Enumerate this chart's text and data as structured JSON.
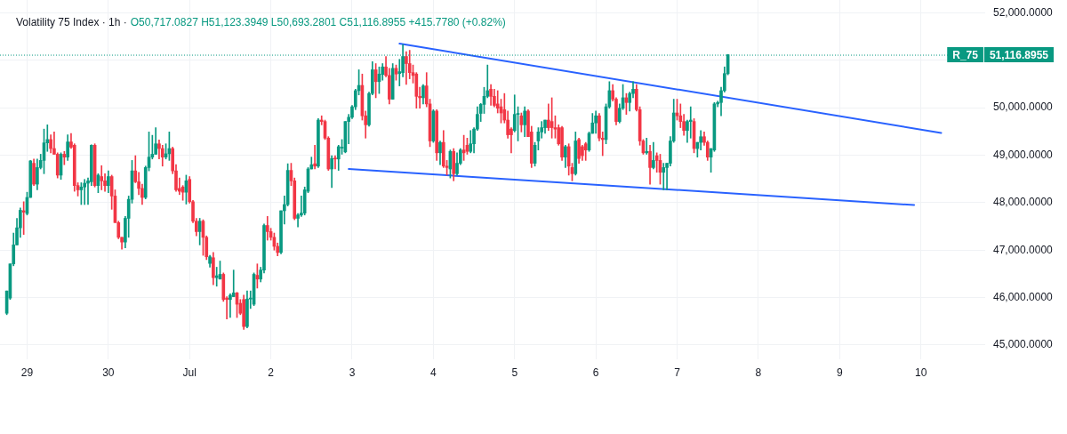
{
  "chart_data": {
    "type": "candlestick",
    "title": "Volatility 75 Index · 1h ·",
    "subtitle": "O50,717.0827 H51,123.3949 L50,693.2801 C51,116.8955 +415.7780 (+0.82%)",
    "x": [
      "--06-28T18:00",
      "--06-28T19:00",
      "--06-28T20:00",
      "--06-28T21:00",
      "--06-28T22:00",
      "--06-28T23:00",
      "--06-29T00:00",
      "--06-29T01:00",
      "--06-29T02:00",
      "--06-29T03:00",
      "--06-29T04:00",
      "--06-29T05:00",
      "--06-29T06:00",
      "--06-29T07:00",
      "--06-29T08:00",
      "--06-29T09:00",
      "--06-29T10:00",
      "--06-29T11:00",
      "--06-29T12:00",
      "--06-29T13:00",
      "--06-29T14:00",
      "--06-29T15:00",
      "--06-29T16:00",
      "--06-29T17:00",
      "--06-29T18:00",
      "--06-29T19:00",
      "--06-29T20:00",
      "--06-29T21:00",
      "--06-29T22:00",
      "--06-29T23:00",
      "--06-30T00:00",
      "--06-30T01:00",
      "--06-30T02:00",
      "--06-30T03:00",
      "--06-30T04:00",
      "--06-30T05:00",
      "--06-30T06:00",
      "--06-30T07:00",
      "--06-30T08:00",
      "--06-30T09:00",
      "--06-30T10:00",
      "--06-30T11:00",
      "--06-30T12:00",
      "--06-30T13:00",
      "--06-30T14:00",
      "--06-30T15:00",
      "--06-30T16:00",
      "--06-30T17:00",
      "--06-30T18:00",
      "--06-30T19:00",
      "--06-30T20:00",
      "--06-30T21:00",
      "--06-30T22:00",
      "--06-30T23:00",
      "--07-01T00:00",
      "--07-01T01:00",
      "--07-01T02:00",
      "--07-01T03:00",
      "--07-01T04:00",
      "--07-01T05:00",
      "--07-01T06:00",
      "--07-01T07:00",
      "--07-01T08:00",
      "--07-01T09:00",
      "--07-01T10:00",
      "--07-01T11:00",
      "--07-01T12:00",
      "--07-01T13:00",
      "--07-01T14:00",
      "--07-01T15:00",
      "--07-01T16:00",
      "--07-01T17:00",
      "--07-01T18:00",
      "--07-01T19:00",
      "--07-01T20:00",
      "--07-01T21:00",
      "--07-01T22:00",
      "--07-01T23:00",
      "--07-02T00:00",
      "--07-02T01:00",
      "--07-02T02:00",
      "--07-02T03:00",
      "--07-02T04:00",
      "--07-02T05:00",
      "--07-02T06:00",
      "--07-02T07:00",
      "--07-02T08:00",
      "--07-02T09:00",
      "--07-02T10:00",
      "--07-02T11:00",
      "--07-02T12:00",
      "--07-02T13:00",
      "--07-02T14:00",
      "--07-02T15:00",
      "--07-02T16:00",
      "--07-02T17:00",
      "--07-02T18:00",
      "--07-02T19:00",
      "--07-02T20:00",
      "--07-02T21:00",
      "--07-02T22:00",
      "--07-02T23:00",
      "--07-03T00:00",
      "--07-03T01:00",
      "--07-03T02:00",
      "--07-03T03:00",
      "--07-03T04:00",
      "--07-03T05:00",
      "--07-03T06:00",
      "--07-03T07:00",
      "--07-03T08:00",
      "--07-03T09:00",
      "--07-03T10:00",
      "--07-03T11:00",
      "--07-03T12:00",
      "--07-03T13:00",
      "--07-03T14:00",
      "--07-03T15:00",
      "--07-03T16:00",
      "--07-03T17:00",
      "--07-03T18:00",
      "--07-03T19:00",
      "--07-03T20:00",
      "--07-03T21:00",
      "--07-03T22:00",
      "--07-03T23:00",
      "--07-04T00:00",
      "--07-04T01:00",
      "--07-04T02:00",
      "--07-04T03:00",
      "--07-04T04:00",
      "--07-04T05:00",
      "--07-04T06:00",
      "--07-04T07:00",
      "--07-04T08:00",
      "--07-04T09:00",
      "--07-04T10:00",
      "--07-04T11:00",
      "--07-04T12:00",
      "--07-04T13:00",
      "--07-04T14:00",
      "--07-04T15:00",
      "--07-04T16:00",
      "--07-04T17:00",
      "--07-04T18:00",
      "--07-04T19:00",
      "--07-04T20:00",
      "--07-04T21:00",
      "--07-04T22:00",
      "--07-04T23:00",
      "--07-05T00:00",
      "--07-05T01:00",
      "--07-05T02:00",
      "--07-05T03:00",
      "--07-05T04:00",
      "--07-05T05:00",
      "--07-05T06:00",
      "--07-05T07:00",
      "--07-05T08:00",
      "--07-05T09:00",
      "--07-05T10:00",
      "--07-05T11:00",
      "--07-05T12:00",
      "--07-05T13:00",
      "--07-05T14:00",
      "--07-05T15:00",
      "--07-05T16:00",
      "--07-05T17:00",
      "--07-05T18:00",
      "--07-05T19:00",
      "--07-05T20:00",
      "--07-05T21:00",
      "--07-05T22:00",
      "--07-05T23:00",
      "--07-06T00:00",
      "--07-06T01:00",
      "--07-06T02:00",
      "--07-06T03:00",
      "--07-06T04:00",
      "--07-06T05:00",
      "--07-06T06:00",
      "--07-06T07:00",
      "--07-06T08:00",
      "--07-06T09:00",
      "--07-06T10:00",
      "--07-06T11:00",
      "--07-06T12:00",
      "--07-06T13:00",
      "--07-06T14:00",
      "--07-06T15:00",
      "--07-06T16:00",
      "--07-06T17:00",
      "--07-06T18:00",
      "--07-06T19:00",
      "--07-06T20:00",
      "--07-06T21:00",
      "--07-06T22:00",
      "--07-06T23:00",
      "--07-07T00:00",
      "--07-07T01:00",
      "--07-07T02:00",
      "--07-07T03:00",
      "--07-07T04:00",
      "--07-07T05:00",
      "--07-07T06:00",
      "--07-07T07:00",
      "--07-07T08:00",
      "--07-07T09:00",
      "--07-07T10:00",
      "--07-07T11:00",
      "--07-07T12:00",
      "--07-07T13:00",
      "--07-07T14:00",
      "--07-07T15:00"
    ],
    "ohlc": [
      [
        45670,
        46140,
        45640,
        46140
      ],
      [
        45990,
        46710,
        45960,
        46710
      ],
      [
        46710,
        47360,
        46670,
        47110
      ],
      [
        47110,
        47670,
        47110,
        47470
      ],
      [
        47470,
        47890,
        47270,
        47840
      ],
      [
        47830,
        48020,
        47330,
        47800
      ],
      [
        47770,
        48220,
        47740,
        48110
      ],
      [
        48110,
        48890,
        48110,
        48880
      ],
      [
        48830,
        48920,
        48360,
        48390
      ],
      [
        48390,
        48920,
        48270,
        48740
      ],
      [
        48740,
        49020,
        48710,
        48890
      ],
      [
        48890,
        49550,
        48610,
        49260
      ],
      [
        49260,
        49640,
        49080,
        49330
      ],
      [
        49330,
        49430,
        49050,
        49140
      ],
      [
        49140,
        49490,
        49020,
        49020
      ],
      [
        49020,
        49050,
        48520,
        48580
      ],
      [
        48580,
        49050,
        48490,
        49020
      ],
      [
        49020,
        49080,
        48800,
        48960
      ],
      [
        48960,
        49430,
        48890,
        49280
      ],
      [
        49280,
        49460,
        49140,
        49170
      ],
      [
        49210,
        49240,
        48240,
        48360
      ],
      [
        48360,
        48420,
        48140,
        48270
      ],
      [
        48270,
        48420,
        47960,
        48330
      ],
      [
        48330,
        48490,
        47960,
        48410
      ],
      [
        48410,
        48520,
        47960,
        48460
      ],
      [
        48440,
        49220,
        48360,
        49210
      ],
      [
        49210,
        49240,
        48330,
        48360
      ],
      [
        48360,
        48610,
        48210,
        48580
      ],
      [
        48550,
        48780,
        48270,
        48460
      ],
      [
        48460,
        48610,
        48240,
        48360
      ],
      [
        48360,
        48670,
        48210,
        48550
      ],
      [
        48550,
        48580,
        47860,
        48140
      ],
      [
        48140,
        48270,
        47580,
        47580
      ],
      [
        47580,
        47610,
        47240,
        47270
      ],
      [
        47270,
        47270,
        47020,
        47170
      ],
      [
        47170,
        47710,
        47050,
        47670
      ],
      [
        47670,
        48140,
        47270,
        48070
      ],
      [
        48070,
        48890,
        47990,
        48670
      ],
      [
        48670,
        48990,
        48420,
        48440
      ],
      [
        48440,
        48640,
        48170,
        48300
      ],
      [
        48300,
        48390,
        47960,
        48110
      ],
      [
        48110,
        48770,
        48080,
        48740
      ],
      [
        48740,
        49490,
        48670,
        48960
      ],
      [
        48960,
        49420,
        48920,
        49020
      ],
      [
        49020,
        49580,
        49020,
        49240
      ],
      [
        49240,
        49320,
        48920,
        49140
      ],
      [
        49140,
        49210,
        48770,
        48960
      ],
      [
        48960,
        49240,
        48920,
        49030
      ],
      [
        49030,
        49490,
        48890,
        49140
      ],
      [
        49140,
        49170,
        48610,
        48670
      ],
      [
        48670,
        48800,
        48240,
        48270
      ],
      [
        48300,
        48520,
        48170,
        48240
      ],
      [
        48330,
        48360,
        48050,
        48220
      ],
      [
        48220,
        48580,
        47970,
        48460
      ],
      [
        48490,
        48550,
        47990,
        48020
      ],
      [
        48020,
        48050,
        47580,
        47610
      ],
      [
        47610,
        47670,
        47300,
        47390
      ],
      [
        47390,
        47670,
        47110,
        47610
      ],
      [
        47610,
        47640,
        46890,
        47270
      ],
      [
        47270,
        47300,
        46800,
        46860
      ],
      [
        46720,
        46890,
        46640,
        46860
      ],
      [
        46840,
        46950,
        46270,
        46420
      ],
      [
        46420,
        46640,
        46240,
        46460
      ],
      [
        46390,
        46770,
        46390,
        46490
      ],
      [
        46490,
        46520,
        45920,
        45960
      ],
      [
        45990,
        46020,
        45550,
        45960
      ],
      [
        45960,
        46080,
        45580,
        46050
      ],
      [
        46020,
        46580,
        46020,
        46100
      ],
      [
        46100,
        46110,
        45580,
        45860
      ],
      [
        45880,
        45960,
        45640,
        45670
      ],
      [
        45960,
        46050,
        45330,
        45390
      ],
      [
        45390,
        46140,
        45360,
        45970
      ],
      [
        45970,
        46140,
        45770,
        45990
      ],
      [
        45860,
        46520,
        45830,
        46490
      ],
      [
        46470,
        46710,
        46200,
        46390
      ],
      [
        46390,
        46640,
        46330,
        46580
      ],
      [
        46580,
        47550,
        46520,
        47520
      ],
      [
        47520,
        47710,
        47210,
        47390
      ],
      [
        47390,
        47460,
        47210,
        47270
      ],
      [
        47270,
        47360,
        47000,
        47080
      ],
      [
        47080,
        47150,
        46880,
        46950
      ],
      [
        46950,
        47830,
        46920,
        47830
      ],
      [
        47830,
        48140,
        47550,
        47960
      ],
      [
        47960,
        48820,
        47930,
        48680
      ],
      [
        48680,
        48830,
        48360,
        48460
      ],
      [
        48460,
        48520,
        47640,
        47670
      ],
      [
        47670,
        47770,
        47490,
        47740
      ],
      [
        47740,
        48140,
        47710,
        47780
      ],
      [
        47780,
        48330,
        47740,
        48270
      ],
      [
        48240,
        48740,
        48210,
        48710
      ],
      [
        48710,
        48960,
        48710,
        48800
      ],
      [
        48820,
        49210,
        48710,
        48770
      ],
      [
        48770,
        49770,
        48740,
        49740
      ],
      [
        49740,
        49830,
        49640,
        49710
      ],
      [
        49710,
        49740,
        49330,
        49360
      ],
      [
        49360,
        49390,
        48680,
        48710
      ],
      [
        48710,
        48990,
        48320,
        48930
      ],
      [
        48940,
        48990,
        48710,
        48920
      ],
      [
        48920,
        49210,
        48680,
        49180
      ],
      [
        49150,
        49330,
        49020,
        49170
      ],
      [
        49070,
        49710,
        49050,
        49710
      ],
      [
        49710,
        49860,
        49240,
        49800
      ],
      [
        49800,
        50050,
        49770,
        50020
      ],
      [
        50020,
        50390,
        49960,
        50360
      ],
      [
        50360,
        50800,
        50270,
        50470
      ],
      [
        50470,
        50710,
        49740,
        49830
      ],
      [
        49830,
        49930,
        49360,
        49640
      ],
      [
        49640,
        50330,
        49610,
        50300
      ],
      [
        50300,
        50970,
        50270,
        50800
      ],
      [
        50800,
        50930,
        50210,
        50550
      ],
      [
        50550,
        50860,
        50300,
        50710
      ],
      [
        50700,
        50930,
        50580,
        50860
      ],
      [
        50860,
        51080,
        50650,
        50680
      ],
      [
        50680,
        50830,
        50080,
        50180
      ],
      [
        50180,
        50930,
        50180,
        50830
      ],
      [
        50830,
        50900,
        50580,
        50710
      ],
      [
        50720,
        51020,
        50460,
        50760
      ],
      [
        50740,
        51330,
        50650,
        51080
      ],
      [
        51080,
        51180,
        50490,
        50930
      ],
      [
        50930,
        51210,
        50610,
        50740
      ],
      [
        50740,
        50900,
        50520,
        50680
      ],
      [
        50710,
        50740,
        49990,
        50240
      ],
      [
        50240,
        50430,
        49990,
        50210
      ],
      [
        50210,
        50490,
        50080,
        50460
      ],
      [
        50460,
        50740,
        50020,
        50080
      ],
      [
        50080,
        50180,
        49180,
        49300
      ],
      [
        49300,
        49960,
        49270,
        49930
      ],
      [
        49930,
        49960,
        48890,
        49050
      ],
      [
        49050,
        49300,
        48800,
        49270
      ],
      [
        49270,
        49520,
        48740,
        48770
      ],
      [
        48770,
        48890,
        48580,
        48740
      ],
      [
        48710,
        49110,
        48520,
        49080
      ],
      [
        49080,
        49140,
        48460,
        48610
      ],
      [
        48610,
        49050,
        48580,
        48830
      ],
      [
        48830,
        49140,
        48800,
        49110
      ],
      [
        49110,
        49420,
        48890,
        49050
      ],
      [
        49210,
        49360,
        49020,
        49080
      ],
      [
        49080,
        49520,
        49050,
        49240
      ],
      [
        49240,
        49580,
        49050,
        49550
      ],
      [
        49550,
        50020,
        49520,
        49860
      ],
      [
        49880,
        50090,
        49710,
        50070
      ],
      [
        50070,
        50430,
        49880,
        50240
      ],
      [
        50240,
        50900,
        50210,
        50360
      ],
      [
        50390,
        50490,
        50050,
        50240
      ],
      [
        50240,
        50390,
        50020,
        50050
      ],
      [
        50080,
        50360,
        49890,
        49990
      ],
      [
        50020,
        50180,
        49680,
        49890
      ],
      [
        49960,
        50300,
        49680,
        49740
      ],
      [
        49740,
        49930,
        49360,
        49430
      ],
      [
        49550,
        49580,
        49050,
        49430
      ],
      [
        49520,
        50270,
        49490,
        49860
      ],
      [
        49860,
        50020,
        49300,
        49880
      ],
      [
        49830,
        49890,
        49490,
        49640
      ],
      [
        49640,
        50020,
        49390,
        49930
      ],
      [
        49930,
        49960,
        49390,
        49390
      ],
      [
        49490,
        49610,
        48740,
        48830
      ],
      [
        48830,
        49270,
        48770,
        49210
      ],
      [
        49300,
        49580,
        49110,
        49490
      ],
      [
        49490,
        49710,
        49360,
        49580
      ],
      [
        49580,
        49740,
        49460,
        49740
      ],
      [
        49740,
        50080,
        49520,
        49580
      ],
      [
        49710,
        50210,
        49360,
        49580
      ],
      [
        49580,
        49830,
        49360,
        49550
      ],
      [
        49580,
        49640,
        49210,
        49240
      ],
      [
        49580,
        49610,
        48890,
        48960
      ],
      [
        48960,
        49210,
        48740,
        49180
      ],
      [
        49180,
        49240,
        48580,
        48770
      ],
      [
        48740,
        48830,
        48460,
        48610
      ],
      [
        48610,
        49490,
        48580,
        49300
      ],
      [
        49330,
        49360,
        48830,
        48930
      ],
      [
        49180,
        49210,
        48890,
        48990
      ],
      [
        49240,
        49270,
        48890,
        49110
      ],
      [
        49110,
        49490,
        49080,
        49460
      ],
      [
        49460,
        49880,
        49460,
        49680
      ],
      [
        49680,
        49930,
        49460,
        49830
      ],
      [
        49830,
        49880,
        49300,
        49360
      ],
      [
        49360,
        49490,
        48990,
        49330
      ],
      [
        49330,
        50080,
        49240,
        50020
      ],
      [
        50020,
        50550,
        49990,
        50360
      ],
      [
        50360,
        50490,
        50140,
        50180
      ],
      [
        50180,
        50210,
        49640,
        49710
      ],
      [
        49710,
        50080,
        49680,
        49990
      ],
      [
        49990,
        50490,
        49960,
        50210
      ],
      [
        50210,
        50300,
        49860,
        50110
      ],
      [
        50110,
        50330,
        49930,
        50300
      ],
      [
        50300,
        50550,
        50210,
        50390
      ],
      [
        50390,
        50490,
        49930,
        49960
      ],
      [
        49960,
        50020,
        49210,
        49300
      ],
      [
        49300,
        49330,
        49020,
        49050
      ],
      [
        49050,
        49360,
        49020,
        49080
      ],
      [
        49080,
        49210,
        48390,
        48740
      ],
      [
        48740,
        49270,
        48710,
        48890
      ],
      [
        48990,
        49050,
        48640,
        48890
      ],
      [
        48890,
        49020,
        48390,
        48640
      ],
      [
        48640,
        48830,
        48270,
        48740
      ],
      [
        48740,
        48830,
        48270,
        48830
      ],
      [
        48830,
        49390,
        48770,
        49300
      ],
      [
        49300,
        50180,
        49270,
        49890
      ],
      [
        49890,
        50180,
        49740,
        49830
      ],
      [
        49830,
        50080,
        49580,
        49710
      ],
      [
        49710,
        49860,
        49420,
        49520
      ],
      [
        49520,
        49740,
        49270,
        49710
      ],
      [
        49710,
        50020,
        49360,
        49740
      ],
      [
        49710,
        49770,
        49050,
        49140
      ],
      [
        49140,
        49270,
        48960,
        49270
      ],
      [
        49270,
        49520,
        49110,
        49390
      ],
      [
        49390,
        49490,
        49210,
        49270
      ],
      [
        49270,
        49300,
        48890,
        48960
      ],
      [
        48960,
        49140,
        48640,
        49140
      ],
      [
        49110,
        50110,
        49080,
        50080
      ],
      [
        50080,
        50140,
        50020,
        50110
      ],
      [
        50110,
        50430,
        49830,
        50360
      ],
      [
        50360,
        50860,
        50330,
        50720
      ],
      [
        50717.0827,
        51123.3949,
        50693.2801,
        51116.8955
      ]
    ],
    "colors": [
      "#089981",
      "#089981",
      "#089981",
      "#089981",
      "#089981",
      "#f23645",
      "#089981",
      "#089981",
      "#f23645",
      "#089981",
      "#089981",
      "#089981",
      "#089981",
      "#f23645",
      "#f23645",
      "#f23645",
      "#089981",
      "#f23645",
      "#089981",
      "#f23645",
      "#f23645",
      "#f23645",
      "#089981",
      "#089981",
      "#089981",
      "#089981",
      "#f23645",
      "#089981",
      "#f23645",
      "#f23645",
      "#089981",
      "#f23645",
      "#f23645",
      "#f23645",
      "#f23645",
      "#089981",
      "#089981",
      "#089981",
      "#f23645",
      "#f23645",
      "#f23645",
      "#089981",
      "#089981",
      "#089981",
      "#089981",
      "#f23645",
      "#f23645",
      "#089981",
      "#089981",
      "#f23645",
      "#f23645",
      "#f23645",
      "#f23645",
      "#089981",
      "#f23645",
      "#f23645",
      "#f23645",
      "#089981",
      "#f23645",
      "#f23645",
      "#089981",
      "#f23645",
      "#089981",
      "#089981",
      "#f23645",
      "#f23645",
      "#089981",
      "#089981",
      "#f23645",
      "#f23645",
      "#f23645",
      "#089981",
      "#089981",
      "#089981",
      "#f23645",
      "#089981",
      "#089981",
      "#f23645",
      "#f23645",
      "#f23645",
      "#f23645",
      "#089981",
      "#089981",
      "#089981",
      "#f23645",
      "#f23645",
      "#089981",
      "#089981",
      "#089981",
      "#089981",
      "#089981",
      "#f23645",
      "#089981",
      "#f23645",
      "#f23645",
      "#f23645",
      "#089981",
      "#f23645",
      "#089981",
      "#089981",
      "#089981",
      "#089981",
      "#089981",
      "#089981",
      "#089981",
      "#f23645",
      "#f23645",
      "#089981",
      "#089981",
      "#f23645",
      "#089981",
      "#089981",
      "#f23645",
      "#f23645",
      "#089981",
      "#f23645",
      "#089981",
      "#089981",
      "#f23645",
      "#f23645",
      "#f23645",
      "#f23645",
      "#f23645",
      "#089981",
      "#f23645",
      "#f23645",
      "#089981",
      "#f23645",
      "#089981",
      "#f23645",
      "#f23645",
      "#089981",
      "#f23645",
      "#089981",
      "#089981",
      "#f23645",
      "#f23645",
      "#089981",
      "#089981",
      "#089981",
      "#089981",
      "#089981",
      "#089981",
      "#f23645",
      "#f23645",
      "#f23645",
      "#f23645",
      "#f23645",
      "#f23645",
      "#f23645",
      "#089981",
      "#089981",
      "#f23645",
      "#089981",
      "#f23645",
      "#f23645",
      "#089981",
      "#089981",
      "#089981",
      "#089981",
      "#f23645",
      "#f23645",
      "#f23645",
      "#f23645",
      "#f23645",
      "#089981",
      "#f23645",
      "#f23645",
      "#089981",
      "#f23645",
      "#f23645",
      "#f23645",
      "#089981",
      "#089981",
      "#089981",
      "#f23645",
      "#f23645",
      "#089981",
      "#089981",
      "#f23645",
      "#f23645",
      "#089981",
      "#089981",
      "#f23645",
      "#089981",
      "#089981",
      "#f23645",
      "#f23645",
      "#f23645",
      "#089981",
      "#f23645",
      "#089981",
      "#f23645",
      "#f23645",
      "#089981",
      "#089981",
      "#089981",
      "#089981",
      "#f23645",
      "#f23645",
      "#f23645",
      "#089981",
      "#089981",
      "#f23645",
      "#089981",
      "#089981",
      "#f23645",
      "#f23645",
      "#089981",
      "#089981",
      "#089981",
      "#089981",
      "#089981",
      "#089981"
    ],
    "series": [
      {
        "type": "line",
        "x": [
          "--07-03T14:00",
          "--07-10T06:00"
        ],
        "values": [
          51350,
          49470
        ],
        "color": "#2962ff"
      },
      {
        "type": "line",
        "x": [
          "--07-02T23:00",
          "--07-09T22:00"
        ],
        "values": [
          48710,
          47950
        ],
        "color": "#2962ff"
      }
    ],
    "ref_lines": [
      {
        "axis": "y",
        "value": 51116.8955,
        "label": "R_75",
        "color": "#089981",
        "line_style": "dotted"
      }
    ],
    "annotations": [
      "51,116.8955"
    ],
    "xlim": [
      "--06-28T16:00",
      "--07-10T19:00"
    ],
    "xticks": [
      {
        "value": "--06-29",
        "label": "29"
      },
      {
        "value": "--06-30",
        "label": "30"
      },
      {
        "value": "--07-01",
        "label": "Jul"
      },
      {
        "value": "--07-02",
        "label": "2"
      },
      {
        "value": "--07-03",
        "label": "3"
      },
      {
        "value": "--07-04",
        "label": "4"
      },
      {
        "value": "--07-05",
        "label": "5"
      },
      {
        "value": "--07-06",
        "label": "6"
      },
      {
        "value": "--07-07",
        "label": "7"
      },
      {
        "value": "--07-08",
        "label": "8"
      },
      {
        "value": "--07-09",
        "label": "9"
      },
      {
        "value": "--07-10",
        "label": "10"
      }
    ],
    "ylim": [
      44700,
      52270
    ],
    "yticks": [
      {
        "value": 45000,
        "label": "45,000.0000"
      },
      {
        "value": 46000,
        "label": "46,000.0000"
      },
      {
        "value": 47000,
        "label": "47,000.0000"
      },
      {
        "value": 48000,
        "label": "48,000.0000"
      },
      {
        "value": 49000,
        "label": "49,000.0000"
      },
      {
        "value": 50000,
        "label": "50,000.0000"
      },
      {
        "value": 51000,
        "label": null
      },
      {
        "value": 52000,
        "label": "52,000.0000"
      }
    ],
    "grid": true
  }
}
